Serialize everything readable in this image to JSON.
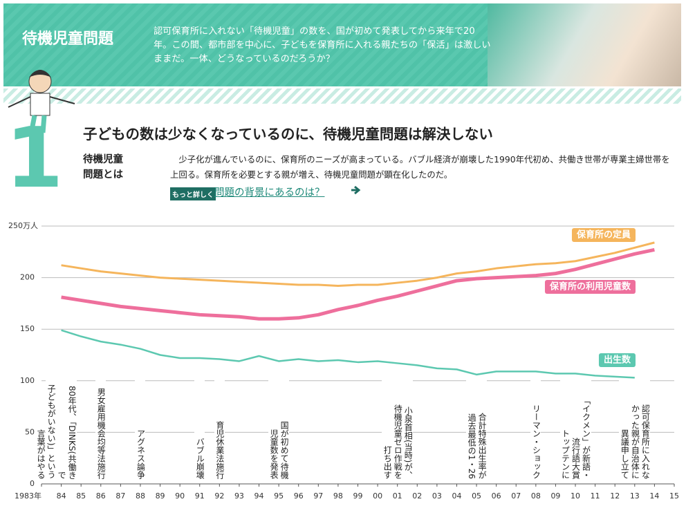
{
  "header": {
    "title": "待機児童問題",
    "description": "認可保育所に入れない「待機児童」の数を、国が初めて発表してから来年で20年。この間、都市部を中心に、子どもを保育所に入れる親たちの「保活」は激しいままだ。一体、どうなっているのだろうか？"
  },
  "section": {
    "number": "1",
    "heading": "子どもの数は少なくなっているのに、待機児童問題は解決しない",
    "term": "待機児童問題とは",
    "body": "少子化が進んでいるのに、保育所のニーズが高まっている。バブル経済が崩壊した1990年代初め、共働き世帯が専業主婦世帯を上回る。保育所を必要とする親が増え、待機児童問題が顕在化したのだ。",
    "more_badge": "もっと詳しく",
    "more_link": "問題の背景にあるのは？"
  },
  "chart_data": {
    "type": "line",
    "x": [
      1984,
      1985,
      1986,
      1987,
      1988,
      1989,
      1990,
      1991,
      1992,
      1993,
      1994,
      1995,
      1996,
      1997,
      1998,
      1999,
      2000,
      2001,
      2002,
      2003,
      2004,
      2005,
      2006,
      2007,
      2008,
      2009,
      2010,
      2011,
      2012,
      2013,
      2014
    ],
    "series": [
      {
        "name": "保育所の定員",
        "color": "#f5b55c",
        "values": [
          212,
          209,
          206,
          204,
          202,
          200,
          199,
          198,
          197,
          196,
          195,
          194,
          193,
          193,
          192,
          193,
          193,
          195,
          197,
          200,
          204,
          206,
          209,
          211,
          213,
          214,
          216,
          220,
          224,
          229,
          234
        ]
      },
      {
        "name": "保育所の利用児童数",
        "color": "#ee6f9c",
        "values": [
          181,
          178,
          175,
          172,
          170,
          168,
          166,
          164,
          163,
          162,
          160,
          160,
          161,
          164,
          169,
          173,
          178,
          182,
          187,
          192,
          197,
          199,
          200,
          201,
          202,
          204,
          208,
          213,
          218,
          223,
          227
        ]
      },
      {
        "name": "出生数",
        "color": "#5cc8b0",
        "values": [
          149,
          143,
          138,
          135,
          131,
          125,
          122,
          122,
          121,
          119,
          124,
          119,
          121,
          119,
          120,
          118,
          119,
          117,
          115,
          112,
          111,
          106,
          109,
          109,
          109,
          107,
          107,
          105,
          104,
          103,
          null
        ]
      }
    ],
    "xlim": [
      1983,
      2015
    ],
    "xticks": [
      {
        "value": 1983,
        "label": "1983年"
      },
      {
        "value": 1984,
        "label": "84"
      },
      {
        "value": 1985,
        "label": "85"
      },
      {
        "value": 1986,
        "label": "86"
      },
      {
        "value": 1987,
        "label": "87"
      },
      {
        "value": 1988,
        "label": "88"
      },
      {
        "value": 1989,
        "label": "89"
      },
      {
        "value": 1990,
        "label": "90"
      },
      {
        "value": 1991,
        "label": "91"
      },
      {
        "value": 1992,
        "label": "92"
      },
      {
        "value": 1993,
        "label": "93"
      },
      {
        "value": 1994,
        "label": "94"
      },
      {
        "value": 1995,
        "label": "95"
      },
      {
        "value": 1996,
        "label": "96"
      },
      {
        "value": 1997,
        "label": "97"
      },
      {
        "value": 1998,
        "label": "98"
      },
      {
        "value": 1999,
        "label": "99"
      },
      {
        "value": 2000,
        "label": "00"
      },
      {
        "value": 2001,
        "label": "01"
      },
      {
        "value": 2002,
        "label": "02"
      },
      {
        "value": 2003,
        "label": "03"
      },
      {
        "value": 2004,
        "label": "04"
      },
      {
        "value": 2005,
        "label": "05"
      },
      {
        "value": 2006,
        "label": "06"
      },
      {
        "value": 2007,
        "label": "07"
      },
      {
        "value": 2008,
        "label": "08"
      },
      {
        "value": 2009,
        "label": "09"
      },
      {
        "value": 2010,
        "label": "10"
      },
      {
        "value": 2011,
        "label": "11"
      },
      {
        "value": 2012,
        "label": "12"
      },
      {
        "value": 2013,
        "label": "13"
      },
      {
        "value": 2014,
        "label": "14"
      },
      {
        "value": 2015,
        "label": "15"
      }
    ],
    "ylim": [
      0,
      250
    ],
    "yticks": [
      0,
      50,
      100,
      150,
      200,
      {
        "value": 250,
        "label": "250万人"
      }
    ],
    "grid": true,
    "annotations": [
      {
        "x": 1984,
        "lines": [
          "80年代、「DINKS(共働きで",
          "子どもがいない)」という",
          "言葉がはやる"
        ]
      },
      {
        "x": 1986,
        "lines": [
          "男女雇用機会均等法施行"
        ]
      },
      {
        "x": 1988,
        "lines": [
          "アグネス論争"
        ]
      },
      {
        "x": 1991,
        "lines": [
          "バブル崩壊"
        ]
      },
      {
        "x": 1992,
        "lines": [
          "育児休業法施行"
        ]
      },
      {
        "x": 1995,
        "lines": [
          "国が初めて待機",
          "児童数を発表"
        ]
      },
      {
        "x": 2001,
        "lines": [
          "小泉首相(当時)が、",
          "待機児童ゼロ作戦を",
          "打ち出す"
        ]
      },
      {
        "x": 2005,
        "lines": [
          "合計特殊出生率が",
          "過去最低の1・26"
        ]
      },
      {
        "x": 2008,
        "lines": [
          "リーマン・ショック"
        ]
      },
      {
        "x": 2010,
        "lines": [
          "「イクメン」が新語・",
          "流行語大賞",
          "トップテンに"
        ]
      },
      {
        "x": 2013,
        "lines": [
          "認可保育所に入れな",
          "かった親が自治体に",
          "異議申し立て"
        ]
      }
    ]
  }
}
